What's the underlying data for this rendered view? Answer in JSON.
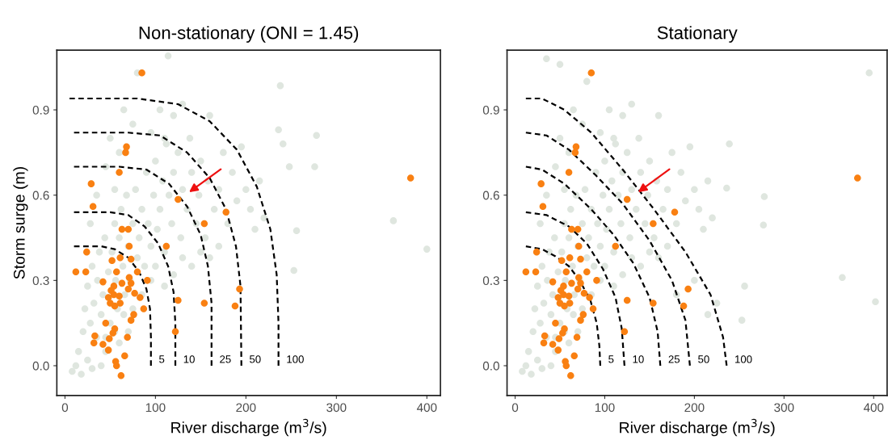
{
  "chart_data": [
    {
      "type": "scatter",
      "title": "Non-stationary (ONI = 1.45)",
      "xlabel": "River discharge (m$^{3}$/s)",
      "ylabel": "Storm surge (m)",
      "xlim": [
        -9,
        415
      ],
      "ylim": [
        -0.105,
        1.11
      ],
      "xticks": [
        0,
        100,
        200,
        300,
        400
      ],
      "yticks": [
        {
          "value": 0,
          "label": "0.0"
        },
        0.3,
        0.6,
        0.9
      ],
      "grid": false,
      "marker": "circle",
      "series": [
        {
          "color": "#dfe6df",
          "x": [
            15,
            20,
            22,
            25,
            28,
            30,
            32,
            35,
            36,
            38,
            40,
            42,
            44,
            45,
            48,
            50,
            52,
            55,
            56,
            58,
            60,
            62,
            64,
            66,
            68,
            70,
            72,
            75,
            78,
            80,
            82,
            85,
            88,
            90,
            92,
            95,
            98,
            100,
            102,
            105,
            108,
            110,
            112,
            115,
            118,
            120,
            125,
            128,
            130,
            135,
            138,
            140,
            145,
            148,
            150,
            155,
            158,
            160,
            165,
            170,
            175,
            180,
            185,
            190,
            195,
            200,
            205,
            210,
            215,
            220,
            8,
            12,
            18,
            25,
            30,
            40,
            28,
            35,
            45,
            50,
            55,
            60,
            65,
            75,
            80,
            95,
            105,
            110,
            120,
            130,
            114,
            238,
            236,
            278,
            241,
            276,
            248,
            363,
            400,
            256,
            253,
            45,
            50,
            55,
            60,
            65,
            70,
            75,
            85,
            95,
            100,
            110,
            120,
            130,
            140,
            150,
            160,
            170
          ],
          "values": [
            0.05,
            0.12,
            0.2,
            0.28,
            0.15,
            0.35,
            0.22,
            0.1,
            0.3,
            0.4,
            0.18,
            0.25,
            0.45,
            0.05,
            0.33,
            0.15,
            0.4,
            0.5,
            0.3,
            0.2,
            0.45,
            0.55,
            0.35,
            0.25,
            0.6,
            0.42,
            0.3,
            0.5,
            0.62,
            0.38,
            0.45,
            0.55,
            0.35,
            0.68,
            0.5,
            0.42,
            0.6,
            0.72,
            0.48,
            0.55,
            0.65,
            0.4,
            0.78,
            0.6,
            0.5,
            0.68,
            0.75,
            0.45,
            0.62,
            0.55,
            0.8,
            0.68,
            0.5,
            0.6,
            0.72,
            0.45,
            0.65,
            0.88,
            0.55,
            0.62,
            0.75,
            0.5,
            0.68,
            0.58,
            0.77,
            0.62,
            0.55,
            0.48,
            0.65,
            0.52,
            -0.02,
            0.0,
            -0.03,
            0.02,
            -0.01,
            0.0,
            0.5,
            0.6,
            0.7,
            0.8,
            0.62,
            0.75,
            0.9,
            0.85,
            1.03,
            0.82,
            0.9,
            0.8,
            0.88,
            0.92,
            1.09,
            0.985,
            0.83,
            0.81,
            0.78,
            0.7,
            0.7,
            0.51,
            0.41,
            0.475,
            0.335,
            0.1,
            null,
            0.12,
            0.08,
            0.18,
            0.12,
            0.2,
            0.25,
            0.3,
            0.35,
            0.28,
            0.32,
            0.38,
            0.35,
            0.4,
            0.38,
            0.42
          ]
        },
        {
          "type": "line",
          "line_style": "dashed",
          "marker": "none",
          "color": "#000000",
          "x": [
            10,
            40,
            55,
            70,
            82,
            90,
            94,
            95,
            95
          ],
          "values": [
            0.42,
            0.42,
            0.41,
            0.38,
            0.33,
            0.27,
            0.2,
            0.1,
            0.0
          ]
        },
        {
          "type": "line",
          "line_style": "dashed",
          "marker": "none",
          "color": "#000000",
          "x": [
            10,
            50,
            70,
            88,
            103,
            114,
            120,
            122,
            122
          ],
          "values": [
            0.54,
            0.54,
            0.53,
            0.49,
            0.43,
            0.35,
            0.26,
            0.15,
            0.0
          ]
        },
        {
          "type": "line",
          "line_style": "dashed",
          "marker": "none",
          "color": "#000000",
          "x": [
            10,
            60,
            90,
            115,
            135,
            150,
            158,
            162,
            162
          ],
          "values": [
            0.7,
            0.7,
            0.69,
            0.64,
            0.56,
            0.46,
            0.35,
            0.22,
            0.0
          ]
        },
        {
          "type": "line",
          "line_style": "dashed",
          "marker": "none",
          "color": "#000000",
          "x": [
            10,
            70,
            105,
            135,
            160,
            178,
            189,
            194,
            195
          ],
          "values": [
            0.82,
            0.82,
            0.81,
            0.75,
            0.66,
            0.55,
            0.42,
            0.28,
            0.0
          ]
        },
        {
          "type": "line",
          "line_style": "dashed",
          "marker": "none",
          "color": "#000000",
          "x": [
            5,
            80,
            125,
            160,
            190,
            212,
            227,
            234,
            236,
            236
          ],
          "values": [
            0.94,
            0.94,
            0.92,
            0.86,
            0.76,
            0.63,
            0.48,
            0.32,
            0.15,
            0.0
          ]
        },
        {
          "color": "#f98012",
          "x": [
            85,
            68,
            67,
            60,
            29,
            31,
            125,
            178,
            154,
            63,
            70,
            112,
            71,
            24,
            52,
            61,
            73,
            12,
            23,
            57,
            80,
            42,
            54,
            63,
            71,
            73,
            70,
            91,
            77,
            51,
            48,
            54,
            60,
            83,
            50,
            61,
            55,
            87,
            125,
            154,
            193,
            188,
            76,
            73,
            45,
            55,
            53,
            122,
            69,
            33,
            32,
            42,
            49,
            48,
            66,
            56,
            57,
            62,
            382
          ],
          "values": [
            1.03,
            0.77,
            0.75,
            0.68,
            0.64,
            0.56,
            0.585,
            0.54,
            0.5,
            0.48,
            0.48,
            0.42,
            0.42,
            0.4,
            0.37,
            0.38,
            0.375,
            0.33,
            0.33,
            0.33,
            0.33,
            0.295,
            0.28,
            0.29,
            0.31,
            0.29,
            0.27,
            0.3,
            0.255,
            0.265,
            0.24,
            0.25,
            0.245,
            0.24,
            0.22,
            0.22,
            0.21,
            0.2,
            0.23,
            0.22,
            0.27,
            0.21,
            0.18,
            0.16,
            0.15,
            0.13,
            0.115,
            0.12,
            0.1,
            0.105,
            0.08,
            0.075,
            0.095,
            0.055,
            0.035,
            0.015,
            0.0,
            -0.035,
            0.66
          ]
        }
      ],
      "annotations": [
        "5",
        "10",
        "25",
        "50",
        "100"
      ]
    },
    {
      "type": "scatter",
      "title": "Stationary",
      "xlabel": "River discharge (m$^{3}$/s)",
      "xlim": [
        -9,
        415
      ],
      "ylim": [
        -0.105,
        1.11
      ],
      "xticks": [
        0,
        100,
        200,
        300,
        400
      ],
      "yticks": [
        {
          "value": 0,
          "label": "0.0"
        },
        0.3,
        0.6,
        0.9
      ],
      "grid": false,
      "marker": "circle",
      "series": [
        {
          "color": "#dfe6df",
          "x": [
            15,
            20,
            22,
            25,
            28,
            30,
            32,
            35,
            36,
            38,
            40,
            42,
            44,
            45,
            48,
            50,
            52,
            55,
            56,
            58,
            60,
            62,
            64,
            66,
            68,
            70,
            72,
            75,
            78,
            80,
            82,
            85,
            88,
            90,
            92,
            95,
            98,
            100,
            102,
            105,
            108,
            110,
            112,
            115,
            118,
            120,
            125,
            128,
            130,
            135,
            138,
            140,
            145,
            148,
            150,
            155,
            158,
            160,
            165,
            170,
            175,
            180,
            185,
            190,
            195,
            200,
            205,
            210,
            215,
            220,
            8,
            12,
            18,
            25,
            30,
            40,
            28,
            35,
            45,
            50,
            55,
            60,
            65,
            75,
            80,
            95,
            105,
            110,
            120,
            130,
            35,
            50,
            395,
            239,
            365,
            402,
            278,
            277,
            256,
            253,
            236,
            45,
            50,
            55,
            60,
            65,
            70,
            75,
            85,
            95,
            100,
            110,
            120,
            130,
            140,
            150,
            160,
            170,
            180,
            200,
            215,
            225
          ],
          "values": [
            0.05,
            0.12,
            0.2,
            0.28,
            0.15,
            0.35,
            0.22,
            0.1,
            0.3,
            0.4,
            0.18,
            0.25,
            0.45,
            0.05,
            0.33,
            0.15,
            0.4,
            0.5,
            0.3,
            0.2,
            0.45,
            0.55,
            0.35,
            0.25,
            0.6,
            0.42,
            0.3,
            0.5,
            0.62,
            0.38,
            0.45,
            0.55,
            0.35,
            0.68,
            0.5,
            0.42,
            0.6,
            0.72,
            0.48,
            0.55,
            0.65,
            0.4,
            0.78,
            0.6,
            0.5,
            0.68,
            0.75,
            0.45,
            0.62,
            0.55,
            0.8,
            0.68,
            0.5,
            0.6,
            0.72,
            0.45,
            0.65,
            0.88,
            0.55,
            0.62,
            0.75,
            0.5,
            0.68,
            0.58,
            0.77,
            0.62,
            0.55,
            0.48,
            0.65,
            0.52,
            -0.02,
            0.0,
            -0.03,
            0.02,
            -0.01,
            0.0,
            0.5,
            0.6,
            0.7,
            0.8,
            0.62,
            0.75,
            0.9,
            0.85,
            1.0,
            0.82,
            0.9,
            0.8,
            0.88,
            0.92,
            1.08,
            1.06,
            1.03,
            0.78,
            0.31,
            0.225,
            0.595,
            0.495,
            0.28,
            0.16,
            0.625,
            0.1,
            0.22,
            0.12,
            0.08,
            0.18,
            0.12,
            0.2,
            0.25,
            0.3,
            0.35,
            0.28,
            0.32,
            0.38,
            0.35,
            0.4,
            0.38,
            0.42,
            0.25,
            0.3,
            0.18,
            0.22
          ]
        },
        {
          "type": "line",
          "line_style": "dashed",
          "marker": "none",
          "color": "#000000",
          "x": [
            12,
            30,
            45,
            60,
            72,
            84,
            91,
            94,
            95
          ],
          "values": [
            0.42,
            0.41,
            0.385,
            0.35,
            0.3,
            0.23,
            0.15,
            0.07,
            0.0
          ]
        },
        {
          "type": "line",
          "line_style": "dashed",
          "marker": "none",
          "color": "#000000",
          "x": [
            12,
            35,
            60,
            80,
            98,
            112,
            119,
            122
          ],
          "values": [
            0.54,
            0.53,
            0.49,
            0.43,
            0.34,
            0.24,
            0.13,
            0.0
          ]
        },
        {
          "type": "line",
          "line_style": "dashed",
          "marker": "none",
          "color": "#000000",
          "x": [
            12,
            30,
            55,
            85,
            110,
            132,
            150,
            159,
            162
          ],
          "values": [
            0.7,
            0.69,
            0.64,
            0.55,
            0.46,
            0.36,
            0.24,
            0.12,
            0.0
          ]
        },
        {
          "type": "line",
          "line_style": "dashed",
          "marker": "none",
          "color": "#000000",
          "x": [
            12,
            35,
            60,
            90,
            120,
            150,
            175,
            190,
            195
          ],
          "values": [
            0.82,
            0.81,
            0.76,
            0.67,
            0.57,
            0.44,
            0.3,
            0.16,
            0.0
          ]
        },
        {
          "type": "line",
          "line_style": "dashed",
          "marker": "none",
          "color": "#000000",
          "x": [
            12,
            30,
            55,
            85,
            120,
            155,
            190,
            218,
            232,
            236
          ],
          "values": [
            0.94,
            0.94,
            0.9,
            0.82,
            0.69,
            0.55,
            0.4,
            0.25,
            0.1,
            0.0
          ]
        },
        {
          "color": "#f98012",
          "x": [
            85,
            68,
            67,
            60,
            29,
            31,
            125,
            178,
            154,
            63,
            70,
            112,
            71,
            24,
            52,
            61,
            73,
            12,
            23,
            57,
            80,
            42,
            54,
            63,
            71,
            73,
            70,
            91,
            77,
            51,
            48,
            54,
            60,
            83,
            50,
            61,
            55,
            87,
            125,
            154,
            193,
            188,
            76,
            73,
            45,
            55,
            53,
            122,
            69,
            33,
            32,
            42,
            49,
            48,
            66,
            56,
            57,
            62,
            382
          ],
          "values": [
            1.03,
            0.77,
            0.75,
            0.68,
            0.64,
            0.56,
            0.585,
            0.54,
            0.5,
            0.48,
            0.48,
            0.42,
            0.42,
            0.4,
            0.37,
            0.38,
            0.375,
            0.33,
            0.33,
            0.33,
            0.33,
            0.295,
            0.28,
            0.29,
            0.31,
            0.29,
            0.27,
            0.3,
            0.255,
            0.265,
            0.24,
            0.25,
            0.245,
            0.24,
            0.22,
            0.22,
            0.21,
            0.2,
            0.23,
            0.22,
            0.27,
            0.21,
            0.18,
            0.16,
            0.15,
            0.13,
            0.115,
            0.12,
            0.1,
            0.105,
            0.08,
            0.075,
            0.095,
            0.055,
            0.035,
            0.015,
            0.0,
            -0.035,
            0.66
          ]
        }
      ],
      "annotations": [
        "5",
        "10",
        "25",
        "50",
        "100"
      ]
    }
  ]
}
